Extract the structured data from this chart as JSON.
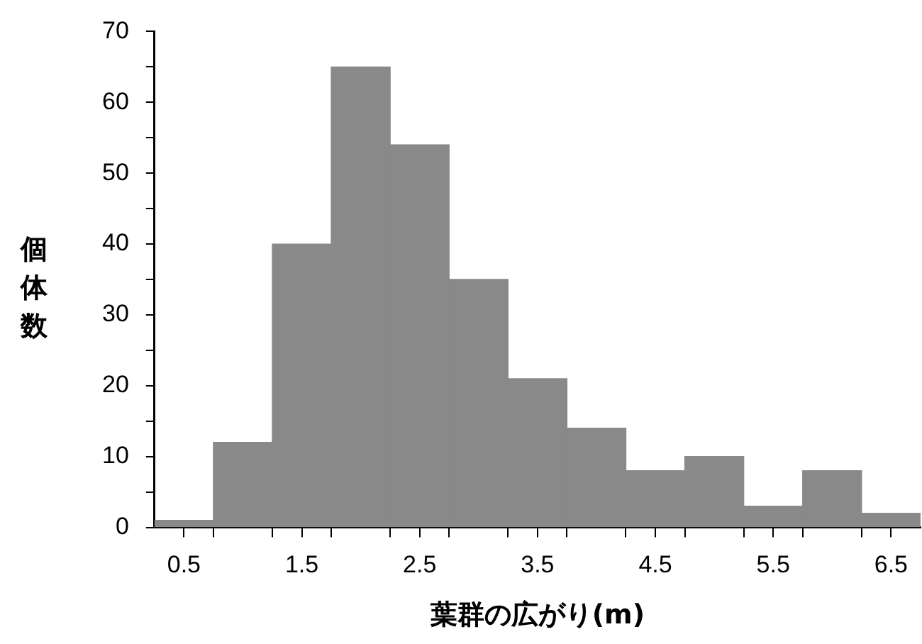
{
  "chart_data": {
    "type": "histogram",
    "xlabel": "葉群の広がり(m)",
    "ylabel": "個体数",
    "bins": [
      0.25,
      0.75,
      1.25,
      1.75,
      2.25,
      2.75,
      3.25,
      3.75,
      4.25,
      4.75,
      5.25,
      5.75,
      6.25,
      6.75
    ],
    "values": [
      1,
      12,
      40,
      65,
      54,
      35,
      21,
      14,
      8,
      10,
      3,
      8,
      2
    ],
    "color": "#898989",
    "xlim": [
      0.25,
      6.75
    ],
    "xticks": [
      0.5,
      {
        "value": 0.75,
        "label": null
      },
      {
        "value": 1.25,
        "label": null
      },
      1.5,
      {
        "value": 1.75,
        "label": null
      },
      {
        "value": 2.25,
        "label": null
      },
      2.5,
      {
        "value": 2.75,
        "label": null
      },
      {
        "value": 3.25,
        "label": null
      },
      3.5,
      {
        "value": 3.75,
        "label": null
      },
      {
        "value": 4.25,
        "label": null
      },
      4.5,
      {
        "value": 4.75,
        "label": null
      },
      {
        "value": 5.25,
        "label": null
      },
      5.5,
      {
        "value": 5.75,
        "label": null
      },
      {
        "value": 6.25,
        "label": null
      },
      6.5
    ],
    "ylim": [
      0,
      70
    ],
    "yticks": [
      0,
      {
        "value": 5,
        "label": null
      },
      10,
      {
        "value": 15,
        "label": null
      },
      20,
      {
        "value": 25,
        "label": null
      },
      30,
      {
        "value": 35,
        "label": null
      },
      40,
      {
        "value": 45,
        "label": null
      },
      50,
      {
        "value": 55,
        "label": null
      },
      60,
      {
        "value": 65,
        "label": null
      },
      70
    ],
    "grid": false,
    "legend": false
  }
}
